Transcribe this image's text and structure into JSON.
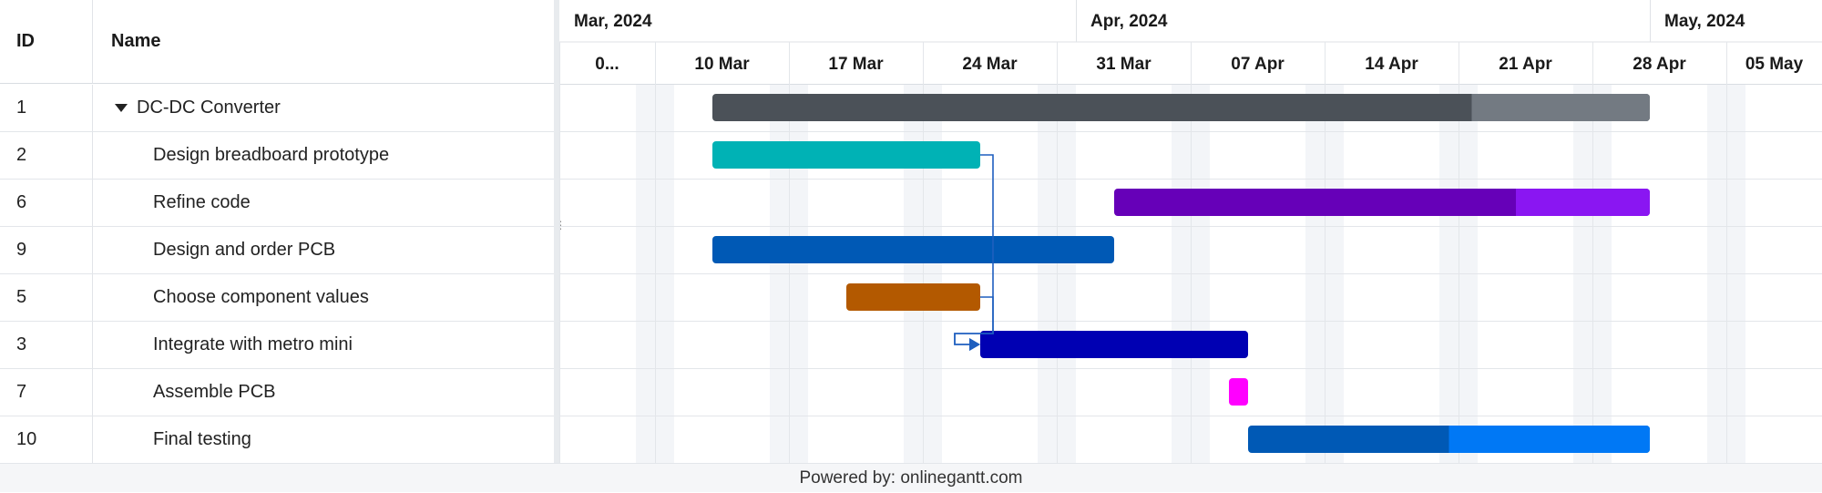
{
  "grid": {
    "columns": {
      "id": "ID",
      "name": "Name"
    },
    "rows": [
      {
        "id": "1",
        "name": "DC-DC Converter",
        "expanded": true
      },
      {
        "id": "2",
        "name": "Design breadboard prototype"
      },
      {
        "id": "6",
        "name": "Refine code"
      },
      {
        "id": "9",
        "name": "Design and order PCB"
      },
      {
        "id": "5",
        "name": "Choose component values"
      },
      {
        "id": "3",
        "name": "Integrate with metro mini"
      },
      {
        "id": "7",
        "name": "Assemble PCB"
      },
      {
        "id": "10",
        "name": "Final testing"
      }
    ]
  },
  "timeline": {
    "months": [
      {
        "label": "Mar, 2024",
        "start": "2024-03-01"
      },
      {
        "label": "Apr, 2024",
        "start": "2024-04-01"
      },
      {
        "label": "May, 2024",
        "start": "2024-05-01"
      }
    ],
    "weeks": [
      {
        "label": "0...",
        "start": "2024-03-03"
      },
      {
        "label": "10 Mar",
        "start": "2024-03-10"
      },
      {
        "label": "17 Mar",
        "start": "2024-03-17"
      },
      {
        "label": "24 Mar",
        "start": "2024-03-24"
      },
      {
        "label": "31 Mar",
        "start": "2024-03-31"
      },
      {
        "label": "07 Apr",
        "start": "2024-04-07"
      },
      {
        "label": "14 Apr",
        "start": "2024-04-14"
      },
      {
        "label": "21 Apr",
        "start": "2024-04-21"
      },
      {
        "label": "28 Apr",
        "start": "2024-04-28"
      },
      {
        "label": "05 May",
        "start": "2024-05-05"
      }
    ],
    "visible_start": "2024-03-05",
    "visible_end": "2024-05-10"
  },
  "tasks": [
    {
      "row": 0,
      "start": "2024-03-13",
      "end": "2024-05-01",
      "color": "#4b5158",
      "progress_color": "#737a82",
      "progress": 0.81
    },
    {
      "row": 1,
      "start": "2024-03-13",
      "end": "2024-03-27",
      "color": "#00b2b5"
    },
    {
      "row": 2,
      "start": "2024-04-03",
      "end": "2024-05-01",
      "color": "#6600b8",
      "progress_color": "#8a16f2",
      "progress": 0.75
    },
    {
      "row": 3,
      "start": "2024-03-13",
      "end": "2024-04-03",
      "color": "#0059b5"
    },
    {
      "row": 4,
      "start": "2024-03-20",
      "end": "2024-03-27",
      "color": "#b35900"
    },
    {
      "row": 5,
      "start": "2024-03-27",
      "end": "2024-04-10",
      "color": "#0000b3"
    },
    {
      "row": 6,
      "start": "2024-04-09",
      "end": "2024-04-10",
      "color": "#ff00ff"
    },
    {
      "row": 7,
      "start": "2024-04-10",
      "end": "2024-05-01",
      "color": "#0059b5",
      "progress_color": "#0078f5",
      "progress": 0.5
    }
  ],
  "dependencies": [
    {
      "from_row": 1,
      "to_row": 5
    },
    {
      "from_row": 4,
      "to_row": 5
    }
  ],
  "footer": {
    "text": "Powered by: onlinegantt.com"
  }
}
